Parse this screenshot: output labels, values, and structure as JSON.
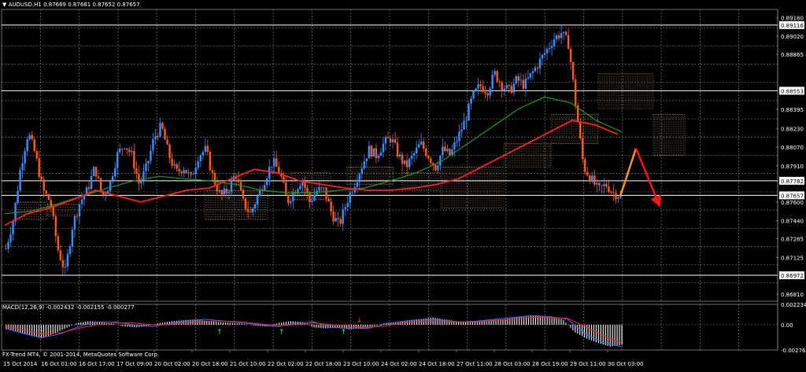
{
  "header": {
    "symbol_label": "AUDUSD,H1",
    "quote": [
      "0.87669",
      "0.87681",
      "0.87652",
      "0.87657"
    ]
  },
  "indicator_header": {
    "name": "MACD(12,26,9)",
    "values": [
      "-0.002432",
      "-0.002155",
      "-0.000277"
    ]
  },
  "footer": {
    "copyright": "FX-Trend MT4, © 2001-2014, MetaQuotes Software Corp."
  },
  "colors": {
    "background": "#000000",
    "grid": "#8a8a8a",
    "bull": "#3a8fff",
    "bear": "#ff5a1a",
    "ma_fast": "#ff2020",
    "ma_slow": "#1f9a1f",
    "cloud": "#ffcfa0",
    "h_line": "#ffffff",
    "arrow_up": "#ff9a10",
    "arrow_down": "#ff1515",
    "macd_hist": "#e8e8e8",
    "macd_line": "#2f6fff",
    "macd_signal": "#ff2222",
    "signal_up": "#20ff60",
    "signal_down": "#ff3030"
  },
  "chart_data": [
    {
      "type": "candlestick",
      "title": "AUDUSD,H1",
      "grid": true,
      "ylim": [
        0.8675,
        0.8925
      ],
      "price_ticks": [
        "0.89180",
        "0.89116",
        "0.89020",
        "0.88865",
        "0.88553",
        "0.88395",
        "0.88230",
        "0.88070",
        "0.87910",
        "0.87782",
        "0.87657",
        "0.87600",
        "0.87440",
        "0.87285",
        "0.87125",
        "0.86972",
        "0.86810"
      ],
      "highlighted_ticks": [
        "0.89116",
        "0.88553",
        "0.87782",
        "0.87657",
        "0.86972"
      ],
      "horizontal_lines": [
        0.89116,
        0.88553,
        0.87782,
        0.87657,
        0.86972
      ],
      "time_labels": [
        "15 Oct 2014",
        "16 Oct 01:00",
        "16 Oct 17:00",
        "17 Oct 09:00",
        "20 Oct 02:00",
        "20 Oct 18:00",
        "21 Oct 10:00",
        "22 Oct 02:00",
        "22 Oct 18:00",
        "23 Oct 10:00",
        "24 Oct 02:00",
        "24 Oct 18:00",
        "27 Oct 11:00",
        "28 Oct 03:00",
        "28 Oct 19:00",
        "29 Oct 11:00",
        "30 Oct 03:00"
      ],
      "price_path": [
        0.872,
        0.8745,
        0.879,
        0.882,
        0.88,
        0.877,
        0.876,
        0.872,
        0.87,
        0.874,
        0.876,
        0.877,
        0.879,
        0.8765,
        0.8775,
        0.88,
        0.881,
        0.88,
        0.8775,
        0.879,
        0.8815,
        0.8825,
        0.88,
        0.8785,
        0.879,
        0.878,
        0.88,
        0.8805,
        0.878,
        0.8765,
        0.877,
        0.8785,
        0.876,
        0.875,
        0.8765,
        0.878,
        0.8795,
        0.8785,
        0.876,
        0.877,
        0.878,
        0.876,
        0.877,
        0.877,
        0.875,
        0.874,
        0.876,
        0.8775,
        0.879,
        0.8805,
        0.88,
        0.881,
        0.8815,
        0.88,
        0.879,
        0.88,
        0.881,
        0.88,
        0.879,
        0.8805,
        0.88,
        0.8815,
        0.883,
        0.885,
        0.886,
        0.8855,
        0.887,
        0.886,
        0.8855,
        0.8865,
        0.886,
        0.887,
        0.888,
        0.889,
        0.89,
        0.8905,
        0.8895,
        0.884,
        0.879,
        0.878,
        0.877,
        0.8775,
        0.8768,
        0.8765
      ],
      "ma_fast_path": [
        0.874,
        0.875,
        0.8755,
        0.8762,
        0.877,
        0.8765,
        0.876,
        0.8765,
        0.877,
        0.8772,
        0.878,
        0.8788,
        0.8785,
        0.8778,
        0.8775,
        0.8772,
        0.877,
        0.877,
        0.8772,
        0.8775,
        0.878,
        0.879,
        0.88,
        0.881,
        0.882,
        0.883,
        0.8826,
        0.8818
      ],
      "ma_slow_path": [
        0.875,
        0.8752,
        0.8758,
        0.8765,
        0.8772,
        0.8778,
        0.8782,
        0.878,
        0.8778,
        0.8775,
        0.877,
        0.8768,
        0.8768,
        0.877,
        0.8772,
        0.8778,
        0.8785,
        0.8795,
        0.881,
        0.8825,
        0.884,
        0.885,
        0.8845,
        0.883,
        0.882
      ],
      "projection_up": [
        0.8765,
        0.8806
      ],
      "projection_down": [
        0.8806,
        0.876
      ]
    },
    {
      "type": "histogram",
      "title": "MACD(12,26,9)",
      "ylim": [
        -0.002768,
        0.002234
      ],
      "ticks": [
        "0.002234",
        "0.00",
        "-0.002768"
      ],
      "histogram": [
        -0.0005,
        -0.0008,
        -0.0012,
        -0.0015,
        -0.001,
        -0.0004,
        0.0002,
        0.0004,
        0.0003,
        0.0001,
        -0.0002,
        -0.0003,
        -0.0001,
        0.0002,
        0.0004,
        0.0005,
        0.0006,
        0.0004,
        0.0003,
        0.0002,
        0.0001,
        -0.0001,
        -0.0002,
        0.0002,
        0.0004,
        0.0003,
        -0.0003,
        -0.0004,
        -0.0003,
        -0.0005,
        -0.0004,
        -0.0002,
        0.0002,
        0.0003,
        0.0004,
        0.0006,
        0.0008,
        0.0006,
        0.0004,
        0.0003,
        0.0004,
        0.0005,
        0.0006,
        0.0008,
        0.0009,
        0.001,
        0.0008,
        0.0006,
        -0.0008,
        -0.0015,
        -0.002,
        -0.0024,
        -0.0022
      ],
      "macd_line": [
        -0.0004,
        -0.001,
        -0.0014,
        -0.001,
        -0.0002,
        0.0003,
        0.0003,
        0.0,
        -0.0002,
        0.0001,
        0.0004,
        0.0006,
        0.0004,
        0.0002,
        0.0,
        -0.0002,
        0.0002,
        0.0003,
        -0.0003,
        -0.0004,
        -0.0004,
        0.0001,
        0.0004,
        0.0006,
        0.0005,
        0.0003,
        0.0004,
        0.0006,
        0.0008,
        0.001,
        0.0009,
        0.0006,
        -0.001,
        -0.002,
        -0.0024
      ],
      "signal_line": [
        -0.0002,
        -0.0006,
        -0.001,
        -0.0009,
        -0.0004,
        0.0,
        0.0002,
        0.0002,
        0.0,
        0.0,
        0.0002,
        0.0004,
        0.0004,
        0.0003,
        0.0001,
        -0.0001,
        0.0,
        0.0002,
        0.0,
        -0.0002,
        -0.0003,
        -0.0001,
        0.0002,
        0.0004,
        0.0004,
        0.0003,
        0.0003,
        0.0005,
        0.0006,
        0.0008,
        0.0008,
        0.0007,
        -0.0002,
        -0.0012,
        -0.002
      ],
      "signals_up": [
        0.28,
        0.36,
        0.44
      ],
      "signals_down": [
        0.46
      ]
    }
  ]
}
